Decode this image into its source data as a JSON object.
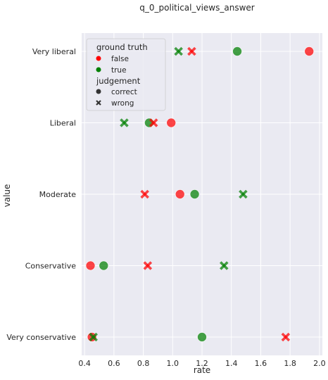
{
  "chart_data": {
    "type": "scatter",
    "title": "q_0_political_views_answer",
    "xlabel": "rate",
    "ylabel": "value",
    "xlim": [
      0.38,
      2.02
    ],
    "xticks": [
      0.4,
      0.6,
      0.8,
      1.0,
      1.2,
      1.4,
      1.6,
      1.8,
      2.0
    ],
    "xtick_labels": [
      "0.4",
      "0.6",
      "0.8",
      "1.0",
      "1.2",
      "1.4",
      "1.6",
      "1.8",
      "2.0"
    ],
    "categories": [
      "Very liberal",
      "Liberal",
      "Moderate",
      "Conservative",
      "Very conservative"
    ],
    "grid": true,
    "legend_position": "upper-left",
    "legend": {
      "hue_title": "ground truth",
      "hue_items": [
        {
          "label": "false",
          "color": "#ff0000"
        },
        {
          "label": "true",
          "color": "#008000"
        }
      ],
      "style_title": "judgement",
      "style_items": [
        {
          "label": "correct",
          "marker": "circle"
        },
        {
          "label": "wrong",
          "marker": "x"
        }
      ]
    },
    "colors": {
      "false": "#ff0000",
      "true": "#008000",
      "background": "#eaeaf2",
      "grid": "#ffffff"
    },
    "points": [
      {
        "category": "Very liberal",
        "x": 1.93,
        "ground_truth": "false",
        "judgement": "correct"
      },
      {
        "category": "Very liberal",
        "x": 1.44,
        "ground_truth": "true",
        "judgement": "correct"
      },
      {
        "category": "Very liberal",
        "x": 1.13,
        "ground_truth": "false",
        "judgement": "wrong"
      },
      {
        "category": "Very liberal",
        "x": 1.04,
        "ground_truth": "true",
        "judgement": "wrong"
      },
      {
        "category": "Liberal",
        "x": 0.99,
        "ground_truth": "false",
        "judgement": "correct"
      },
      {
        "category": "Liberal",
        "x": 0.84,
        "ground_truth": "true",
        "judgement": "correct"
      },
      {
        "category": "Liberal",
        "x": 0.87,
        "ground_truth": "false",
        "judgement": "wrong"
      },
      {
        "category": "Liberal",
        "x": 0.67,
        "ground_truth": "true",
        "judgement": "wrong"
      },
      {
        "category": "Moderate",
        "x": 1.05,
        "ground_truth": "false",
        "judgement": "correct"
      },
      {
        "category": "Moderate",
        "x": 1.15,
        "ground_truth": "true",
        "judgement": "correct"
      },
      {
        "category": "Moderate",
        "x": 0.81,
        "ground_truth": "false",
        "judgement": "wrong"
      },
      {
        "category": "Moderate",
        "x": 1.48,
        "ground_truth": "true",
        "judgement": "wrong"
      },
      {
        "category": "Conservative",
        "x": 0.44,
        "ground_truth": "false",
        "judgement": "correct"
      },
      {
        "category": "Conservative",
        "x": 0.53,
        "ground_truth": "true",
        "judgement": "correct"
      },
      {
        "category": "Conservative",
        "x": 0.83,
        "ground_truth": "false",
        "judgement": "wrong"
      },
      {
        "category": "Conservative",
        "x": 1.35,
        "ground_truth": "true",
        "judgement": "wrong"
      },
      {
        "category": "Very conservative",
        "x": 0.45,
        "ground_truth": "false",
        "judgement": "correct"
      },
      {
        "category": "Very conservative",
        "x": 1.2,
        "ground_truth": "true",
        "judgement": "correct"
      },
      {
        "category": "Very conservative",
        "x": 1.77,
        "ground_truth": "false",
        "judgement": "wrong"
      },
      {
        "category": "Very conservative",
        "x": 0.46,
        "ground_truth": "true",
        "judgement": "wrong"
      }
    ]
  }
}
